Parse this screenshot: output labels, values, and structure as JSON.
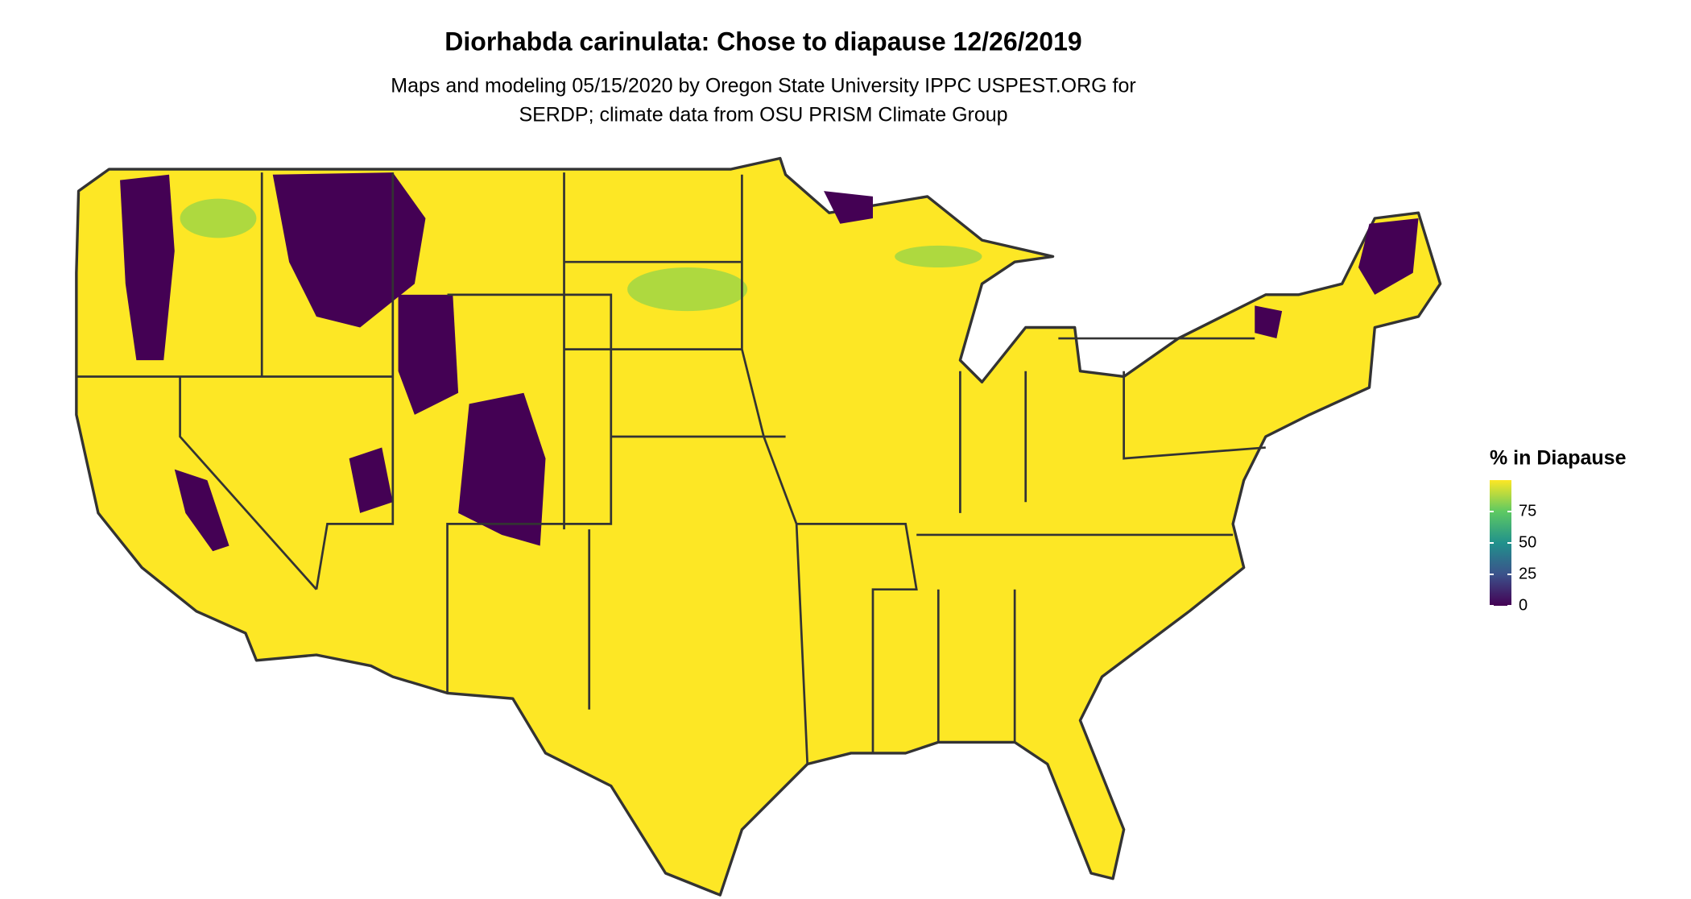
{
  "map": {
    "title": "Diorhabda carinulata: Chose to diapause 12/26/2019",
    "subtitle": [
      "Maps and modeling 05/15/2020 by Oregon State University IPPC USPEST.ORG for",
      "SERDP; climate data from OSU PRISM Climate Group"
    ],
    "legend": {
      "title": "% in Diapause",
      "lim": [
        0,
        100
      ],
      "ticks": [
        0,
        25,
        50,
        75
      ]
    }
  }
}
